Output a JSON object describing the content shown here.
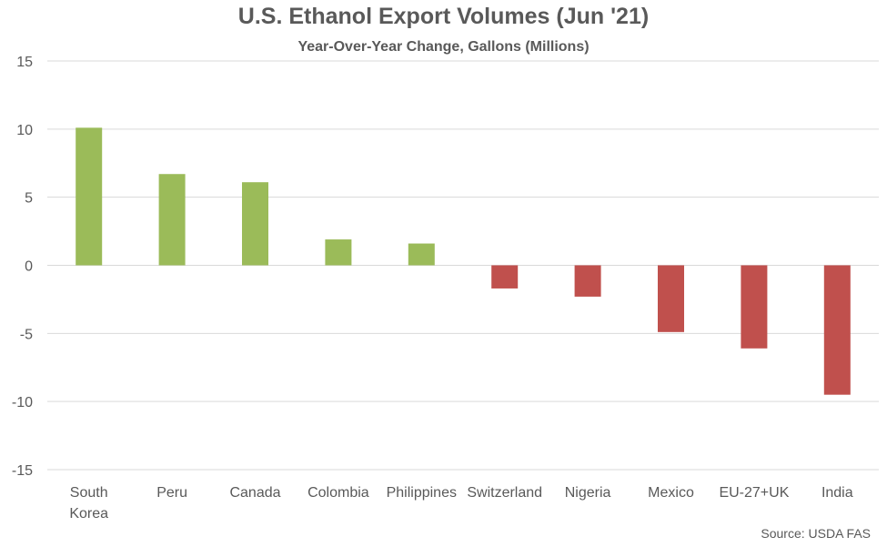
{
  "chart_data": {
    "type": "bar",
    "title": "U.S. Ethanol Export Volumes (Jun '21)",
    "subtitle": "Year-Over-Year Change, Gallons (Millions)",
    "source": "Source: USDA FAS",
    "categories": [
      [
        "South",
        "Korea"
      ],
      [
        "Peru"
      ],
      [
        "Canada"
      ],
      [
        "Colombia"
      ],
      [
        "Philippines"
      ],
      [
        "Switzerland"
      ],
      [
        "Nigeria"
      ],
      [
        "Mexico"
      ],
      [
        "EU-27+UK"
      ],
      [
        "India"
      ]
    ],
    "values": [
      10.1,
      6.7,
      6.1,
      1.9,
      1.6,
      -1.7,
      -2.3,
      -4.9,
      -6.1,
      -9.5
    ],
    "ylim": [
      -15,
      15
    ],
    "yticks": [
      "15",
      "10",
      "5",
      "0",
      "-5",
      "-10",
      "-15"
    ],
    "ytick_values": [
      15,
      10,
      5,
      0,
      -5,
      -10,
      -15
    ],
    "grid": true,
    "colors": {
      "positive": "#9BBB59",
      "negative": "#C0504D",
      "grid": "#D9D9D9",
      "text": "#595959"
    }
  }
}
